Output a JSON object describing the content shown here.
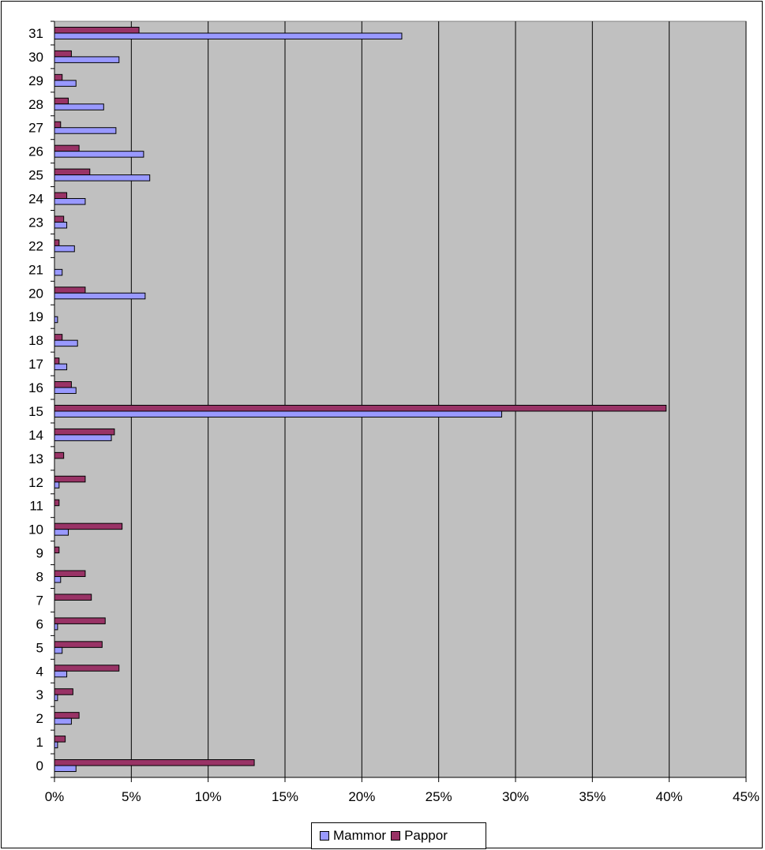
{
  "chart_data": {
    "type": "bar",
    "orientation": "horizontal",
    "categories": [
      "0",
      "1",
      "2",
      "3",
      "4",
      "5",
      "6",
      "7",
      "8",
      "9",
      "10",
      "11",
      "12",
      "13",
      "14",
      "15",
      "16",
      "17",
      "18",
      "19",
      "20",
      "21",
      "22",
      "23",
      "24",
      "25",
      "26",
      "27",
      "28",
      "29",
      "30",
      "31"
    ],
    "series": [
      {
        "name": "Mammor",
        "color": "#9999ff",
        "values": [
          1.4,
          0.2,
          1.1,
          0.2,
          0.8,
          0.5,
          0.2,
          0,
          0.4,
          0,
          0.9,
          0,
          0.3,
          0,
          3.7,
          29.1,
          1.4,
          0.8,
          1.5,
          0.2,
          5.9,
          0.5,
          1.3,
          0.8,
          2.0,
          6.2,
          5.8,
          4.0,
          3.2,
          1.4,
          4.2,
          22.6
        ]
      },
      {
        "name": "Pappor",
        "color": "#993366",
        "values": [
          13.0,
          0.7,
          1.6,
          1.2,
          4.2,
          3.1,
          3.3,
          2.4,
          2.0,
          0.3,
          4.4,
          0.3,
          2.0,
          0.6,
          3.9,
          39.8,
          1.1,
          0.3,
          0.5,
          0,
          2.0,
          0,
          0.3,
          0.6,
          0.8,
          2.3,
          1.6,
          0.4,
          0.9,
          0.5,
          1.1,
          5.5
        ]
      }
    ],
    "x_ticks": [
      "0%",
      "5%",
      "10%",
      "15%",
      "20%",
      "25%",
      "30%",
      "35%",
      "40%",
      "45%"
    ],
    "xlim": [
      0,
      45
    ],
    "grid": true,
    "plot_background": "#c0c0c0",
    "legend_position": "bottom"
  }
}
